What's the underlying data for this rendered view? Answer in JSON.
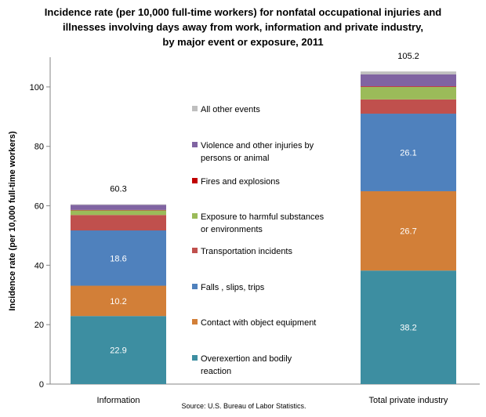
{
  "chart_data": {
    "type": "bar",
    "stacked": true,
    "title_lines": [
      "Incidence rate (per 10,000 full-time workers) for nonfatal occupational injuries and",
      "illnesses involving days away from work, information and private industry,",
      "by major event or exposure, 2011"
    ],
    "ylabel": "Incidence rate (per 10,000 full-time workers)",
    "xlabel": "",
    "ylim": [
      0,
      110
    ],
    "yticks": [
      0,
      20,
      40,
      60,
      80,
      100
    ],
    "grid": false,
    "legend_position": "center",
    "categories": [
      "Information",
      "Total private industry"
    ],
    "totals": [
      "60.3",
      "105.2"
    ],
    "series": [
      {
        "name": "Overexertion and bodily reaction",
        "legend_lines": [
          "Overexertion and bodily",
          "reaction"
        ],
        "values": [
          22.9,
          38.2
        ],
        "labels": [
          "22.9",
          "38.2"
        ],
        "color": "#3d8ea1"
      },
      {
        "name": "Contact with object  equipment",
        "legend_lines": [
          "Contact with object  equipment"
        ],
        "values": [
          10.2,
          26.7
        ],
        "labels": [
          "10.2",
          "26.7"
        ],
        "color": "#d27f38"
      },
      {
        "name": "Falls , slips, trips",
        "legend_lines": [
          "Falls , slips, trips"
        ],
        "values": [
          18.6,
          26.1
        ],
        "labels": [
          "18.6",
          "26.1"
        ],
        "color": "#4f81bd"
      },
      {
        "name": "Transportation incidents",
        "legend_lines": [
          "Transportation incidents"
        ],
        "values": [
          5.2,
          4.8
        ],
        "labels": [
          "",
          ""
        ],
        "color": "#c0504d"
      },
      {
        "name": "Exposure to harmful substances or environments",
        "legend_lines": [
          "Exposure to harmful substances",
          "or environments"
        ],
        "values": [
          1.6,
          4.2
        ],
        "labels": [
          "",
          ""
        ],
        "color": "#9bbb59"
      },
      {
        "name": "Fires and explosions",
        "legend_lines": [
          "Fires and explosions"
        ],
        "values": [
          0.1,
          0.2
        ],
        "labels": [
          "",
          ""
        ],
        "color": "#c00000"
      },
      {
        "name": "Violence and other injuries by persons or animal",
        "legend_lines": [
          "Violence and other injuries by",
          "persons or animal"
        ],
        "values": [
          1.7,
          4.0
        ],
        "labels": [
          "",
          ""
        ],
        "color": "#8064a2"
      },
      {
        "name": "All other events",
        "legend_lines": [
          "All other events"
        ],
        "values": [
          0.2,
          1.0
        ],
        "labels": [
          "",
          ""
        ],
        "color": "#bfbfbf"
      }
    ],
    "source": "Source: U.S. Bureau of Labor Statistics."
  }
}
